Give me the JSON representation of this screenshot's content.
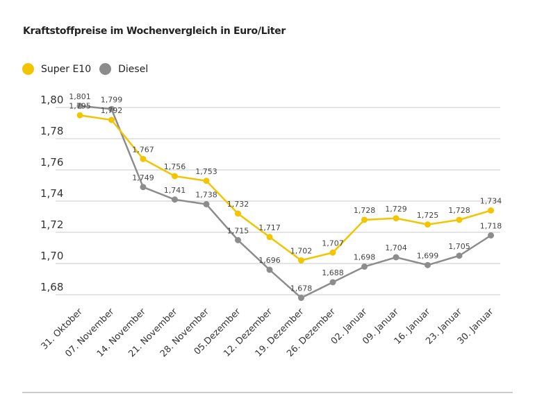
{
  "chart_data": {
    "type": "line",
    "title": "Kraftstoffpreise im Wochenvergleich in Euro/Liter",
    "categories": [
      "31. Oktober",
      "07. November",
      "14. November",
      "21. November",
      "28. November",
      "05.Dezember",
      "12. Dezember",
      "19. Dezember",
      "26. Dezember",
      "02. Januar",
      "09. Januar",
      "16. Januar",
      "23. Januar",
      "30. Januar"
    ],
    "series": [
      {
        "name": "Super E10",
        "color": "#f2c500",
        "values": [
          1.795,
          1.792,
          1.767,
          1.756,
          1.753,
          1.732,
          1.717,
          1.702,
          1.707,
          1.728,
          1.729,
          1.725,
          1.728,
          1.734
        ],
        "labels": [
          "1,795",
          "1,792",
          "1,767",
          "1,756",
          "1,753",
          "1,732",
          "1,717",
          "1,702",
          "1,707",
          "1,728",
          "1,729",
          "1,725",
          "1,728",
          "1,734"
        ]
      },
      {
        "name": "Diesel",
        "color": "#8c8c8c",
        "values": [
          1.801,
          1.799,
          1.749,
          1.741,
          1.738,
          1.715,
          1.696,
          1.678,
          1.688,
          1.698,
          1.704,
          1.699,
          1.705,
          1.718
        ],
        "labels": [
          "1,801",
          "1,799",
          "1,749",
          "1,741",
          "1,738",
          "1,715",
          "1,696",
          "1,678",
          "1,688",
          "1,698",
          "1,704",
          "1,699",
          "1,705",
          "1,718"
        ]
      }
    ],
    "yticks": [
      1.68,
      1.7,
      1.72,
      1.74,
      1.76,
      1.78,
      1.8
    ],
    "ytick_labels": [
      "1,68",
      "1,70",
      "1,72",
      "1,74",
      "1,76",
      "1,78",
      "1,80"
    ],
    "ylim": [
      1.68,
      1.8
    ],
    "grid": true,
    "legend": "top-left"
  }
}
